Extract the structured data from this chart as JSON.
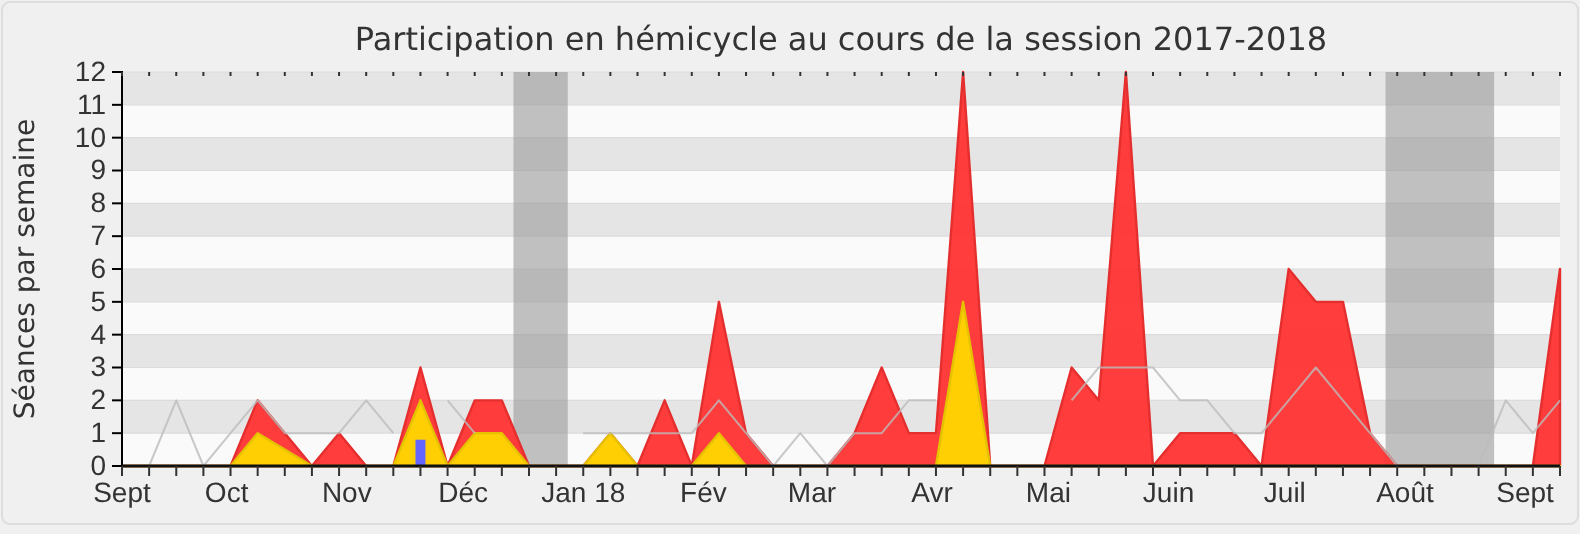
{
  "chart_data": {
    "type": "area",
    "title": "Participation en hémicycle au cours de la session 2017-2018",
    "ylabel": "Séances par semaine",
    "x": [
      "2017-09-04",
      "2017-09-11",
      "2017-09-18",
      "2017-09-25",
      "2017-10-02",
      "2017-10-09",
      "2017-10-16",
      "2017-10-23",
      "2017-10-30",
      "2017-11-06",
      "2017-11-13",
      "2017-11-20",
      "2017-11-27",
      "2017-12-04",
      "2017-12-11",
      "2017-12-18",
      "2017-12-25",
      "2018-01-01",
      "2018-01-08",
      "2018-01-15",
      "2018-01-22",
      "2018-01-29",
      "2018-02-05",
      "2018-02-12",
      "2018-02-19",
      "2018-02-26",
      "2018-03-05",
      "2018-03-12",
      "2018-03-19",
      "2018-03-26",
      "2018-04-02",
      "2018-04-09",
      "2018-04-16",
      "2018-04-23",
      "2018-04-30",
      "2018-05-07",
      "2018-05-14",
      "2018-05-21",
      "2018-05-28",
      "2018-06-04",
      "2018-06-11",
      "2018-06-18",
      "2018-06-25",
      "2018-07-02",
      "2018-07-09",
      "2018-07-16",
      "2018-07-23",
      "2018-07-30",
      "2018-08-06",
      "2018-08-13",
      "2018-08-20",
      "2018-08-27",
      "2018-09-03",
      "2018-09-10"
    ],
    "series": [
      {
        "color": "#ff3333",
        "values": [
          0,
          0,
          0,
          0,
          0,
          2,
          1,
          0,
          1,
          0,
          0,
          3,
          0,
          2,
          2,
          0,
          0,
          0,
          1,
          0,
          2,
          0,
          5,
          1,
          0,
          0,
          0,
          1,
          3,
          1,
          1,
          12,
          0,
          0,
          0,
          3,
          2,
          12,
          0,
          1,
          1,
          1,
          0,
          6,
          5,
          5,
          1,
          0,
          0,
          0,
          0,
          0,
          0,
          6
        ]
      },
      {
        "color": "#ffd700",
        "values": [
          0,
          0,
          0,
          0,
          0,
          1,
          0.5,
          0,
          0,
          0,
          0,
          2,
          0,
          1,
          1,
          0,
          0,
          0,
          1,
          0,
          0,
          0,
          1,
          0,
          0,
          0,
          0,
          0,
          0,
          0,
          0,
          5,
          0,
          0,
          0,
          0,
          0,
          0,
          0,
          0,
          0,
          0,
          0,
          0,
          0,
          0,
          0,
          0,
          0,
          0,
          0,
          0,
          0,
          0
        ]
      },
      {
        "type": "line",
        "color": "#bbbbbb",
        "values": [
          0,
          0,
          2,
          0,
          1,
          2,
          1,
          1,
          1,
          2,
          1,
          null,
          2,
          1,
          null,
          null,
          null,
          1,
          1,
          1,
          1,
          1,
          2,
          1,
          0,
          1,
          0,
          1,
          1,
          2,
          2,
          null,
          null,
          null,
          null,
          2,
          3,
          3,
          3,
          2,
          2,
          1,
          1,
          2,
          3,
          2,
          1,
          0,
          0,
          0,
          0,
          2,
          1,
          2
        ]
      },
      {
        "type": "bar",
        "color": "#6666ff",
        "values": [
          null,
          null,
          null,
          null,
          null,
          null,
          null,
          null,
          null,
          null,
          null,
          0.8,
          null,
          null,
          null,
          null,
          null,
          null,
          null,
          null,
          null,
          null,
          null,
          null,
          null,
          null,
          null,
          null,
          null,
          null,
          null,
          null,
          null,
          null,
          null,
          null,
          null,
          null,
          null,
          null,
          null,
          null,
          null,
          null,
          null,
          null,
          null,
          null,
          null,
          null,
          null,
          null,
          null,
          null
        ]
      }
    ],
    "xlim": [
      "2017-09-04",
      "2018-09-10"
    ],
    "xticks": [
      {
        "value": "2017-09-04",
        "label": "Sept"
      },
      {
        "value": "2017-10-01",
        "label": "Oct"
      },
      {
        "value": "2017-11-01",
        "label": "Nov"
      },
      {
        "value": "2017-12-01",
        "label": "Déc"
      },
      {
        "value": "2018-01-01",
        "label": "Jan 18"
      },
      {
        "value": "2018-02-01",
        "label": "Fév"
      },
      {
        "value": "2018-03-01",
        "label": "Mar"
      },
      {
        "value": "2018-04-01",
        "label": "Avr"
      },
      {
        "value": "2018-05-01",
        "label": "Mai"
      },
      {
        "value": "2018-06-01",
        "label": "Juin"
      },
      {
        "value": "2018-07-01",
        "label": "Juil"
      },
      {
        "value": "2018-08-01",
        "label": "Août"
      },
      {
        "value": "2018-09-01",
        "label": "Sept"
      }
    ],
    "ylim": [
      0,
      12
    ],
    "yticks": [
      0,
      1,
      2,
      3,
      4,
      5,
      6,
      7,
      8,
      9,
      10,
      11,
      12
    ],
    "grid": "y",
    "bands": [
      {
        "axis": "x",
        "from": "2017-12-14",
        "to": "2017-12-28",
        "color": "#999999"
      },
      {
        "axis": "x",
        "from": "2018-07-27",
        "to": "2018-08-24",
        "color": "#999999"
      }
    ]
  }
}
